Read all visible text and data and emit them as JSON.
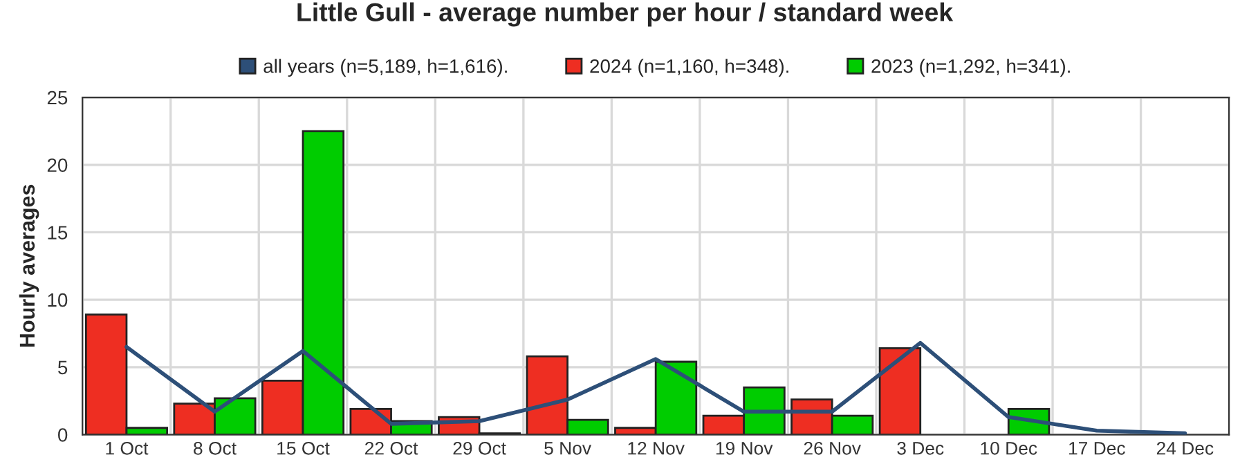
{
  "chart_data": {
    "type": "bar",
    "title": "Little Gull - average number per hour / standard week",
    "ylabel": "Hourly averages",
    "categories": [
      "1 Oct",
      "8 Oct",
      "15 Oct",
      "22 Oct",
      "29 Oct",
      "5 Nov",
      "12 Nov",
      "19 Nov",
      "26 Nov",
      "3 Dec",
      "10 Dec",
      "17 Dec",
      "24 Dec"
    ],
    "series": [
      {
        "name": "all years (n=5,189, h=1,616).",
        "type": "line",
        "color": "#2d4f78",
        "values": [
          6.5,
          1.7,
          6.2,
          0.8,
          1.0,
          2.6,
          5.6,
          1.7,
          1.7,
          6.8,
          1.3,
          0.3,
          0.1
        ]
      },
      {
        "name": "2024 (n=1,160, h=348).",
        "color": "#ee2e22",
        "values": [
          8.9,
          2.3,
          4.0,
          1.9,
          1.3,
          5.8,
          0.5,
          1.4,
          2.6,
          6.4,
          null,
          null,
          null
        ]
      },
      {
        "name": "2023 (n=1,292, h=341).",
        "color": "#00cc00",
        "values": [
          0.5,
          2.7,
          22.5,
          1.0,
          0.1,
          1.1,
          5.4,
          3.5,
          1.4,
          null,
          1.9,
          null,
          null
        ]
      }
    ],
    "ylim": [
      0,
      25
    ],
    "yticks": [
      0,
      5,
      10,
      15,
      20,
      25
    ],
    "grid": true,
    "legend": "top"
  }
}
